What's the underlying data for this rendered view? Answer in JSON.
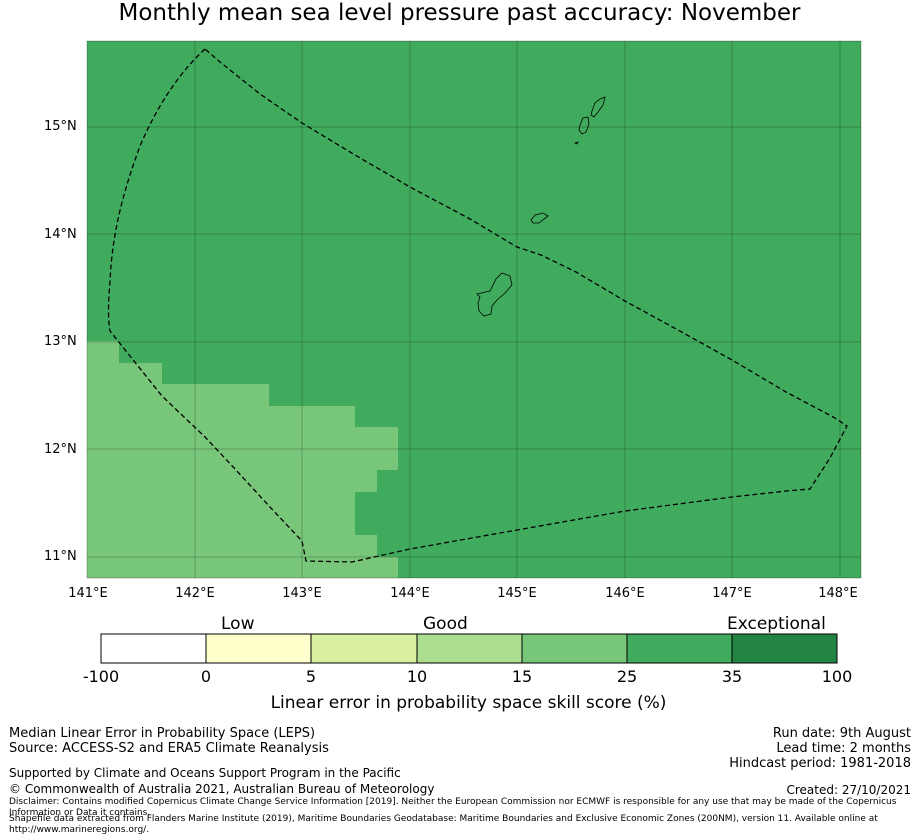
{
  "title": "Monthly mean sea level pressure past accuracy: November",
  "map": {
    "lat_labels": [
      "15°N",
      "14°N",
      "13°N",
      "12°N",
      "11°N"
    ],
    "lon_labels": [
      "141°E",
      "142°E",
      "143°E",
      "144°E",
      "145°E",
      "146°E",
      "147°E",
      "148°E"
    ],
    "lon_range": [
      141.0,
      148.2
    ],
    "lat_range": [
      10.8,
      15.8
    ]
  },
  "legend": {
    "category_low": "Low",
    "category_good": "Good",
    "category_exceptional": "Exceptional",
    "ticks": [
      "-100",
      "0",
      "5",
      "10",
      "15",
      "25",
      "35",
      "100"
    ],
    "colors": [
      "#ffffff",
      "#ffffcc",
      "#d9f0a3",
      "#addd8e",
      "#78c679",
      "#41ab5d",
      "#238443"
    ],
    "axis_title": "Linear error in probability space skill score (%)"
  },
  "footer": {
    "method": "Median Linear Error in Probability Space (LEPS)",
    "source": "Source: ACCESS-S2 and ERA5 Climate Reanalysis",
    "support": "Supported by Climate and Oceans Support Program in the Pacific",
    "copyright": "© Commonwealth of Australia 2021, Australian Bureau of Meteorology",
    "disclaimer": "Disclaimer: Contains modified Copernicus Climate Change Service Information [2019]. Neither the European Commission nor ECMWF is responsible for any use that may be made of the Copernicus Information or Data it contains.",
    "shapefile": "Shapefile data extracted from Flanders Marine Institute (2019), Maritime Boundaries Geodatabase: Maritime Boundaries and Exclusive Economic Zones (200NM), version 11. Available online at http://www.marineregions.org/.",
    "run_date": "Run date: 9th August",
    "lead_time": "Lead time: 2 months",
    "hindcast": "Hindcast period: 1981-2018",
    "created": "Created: 27/10/2021"
  }
}
